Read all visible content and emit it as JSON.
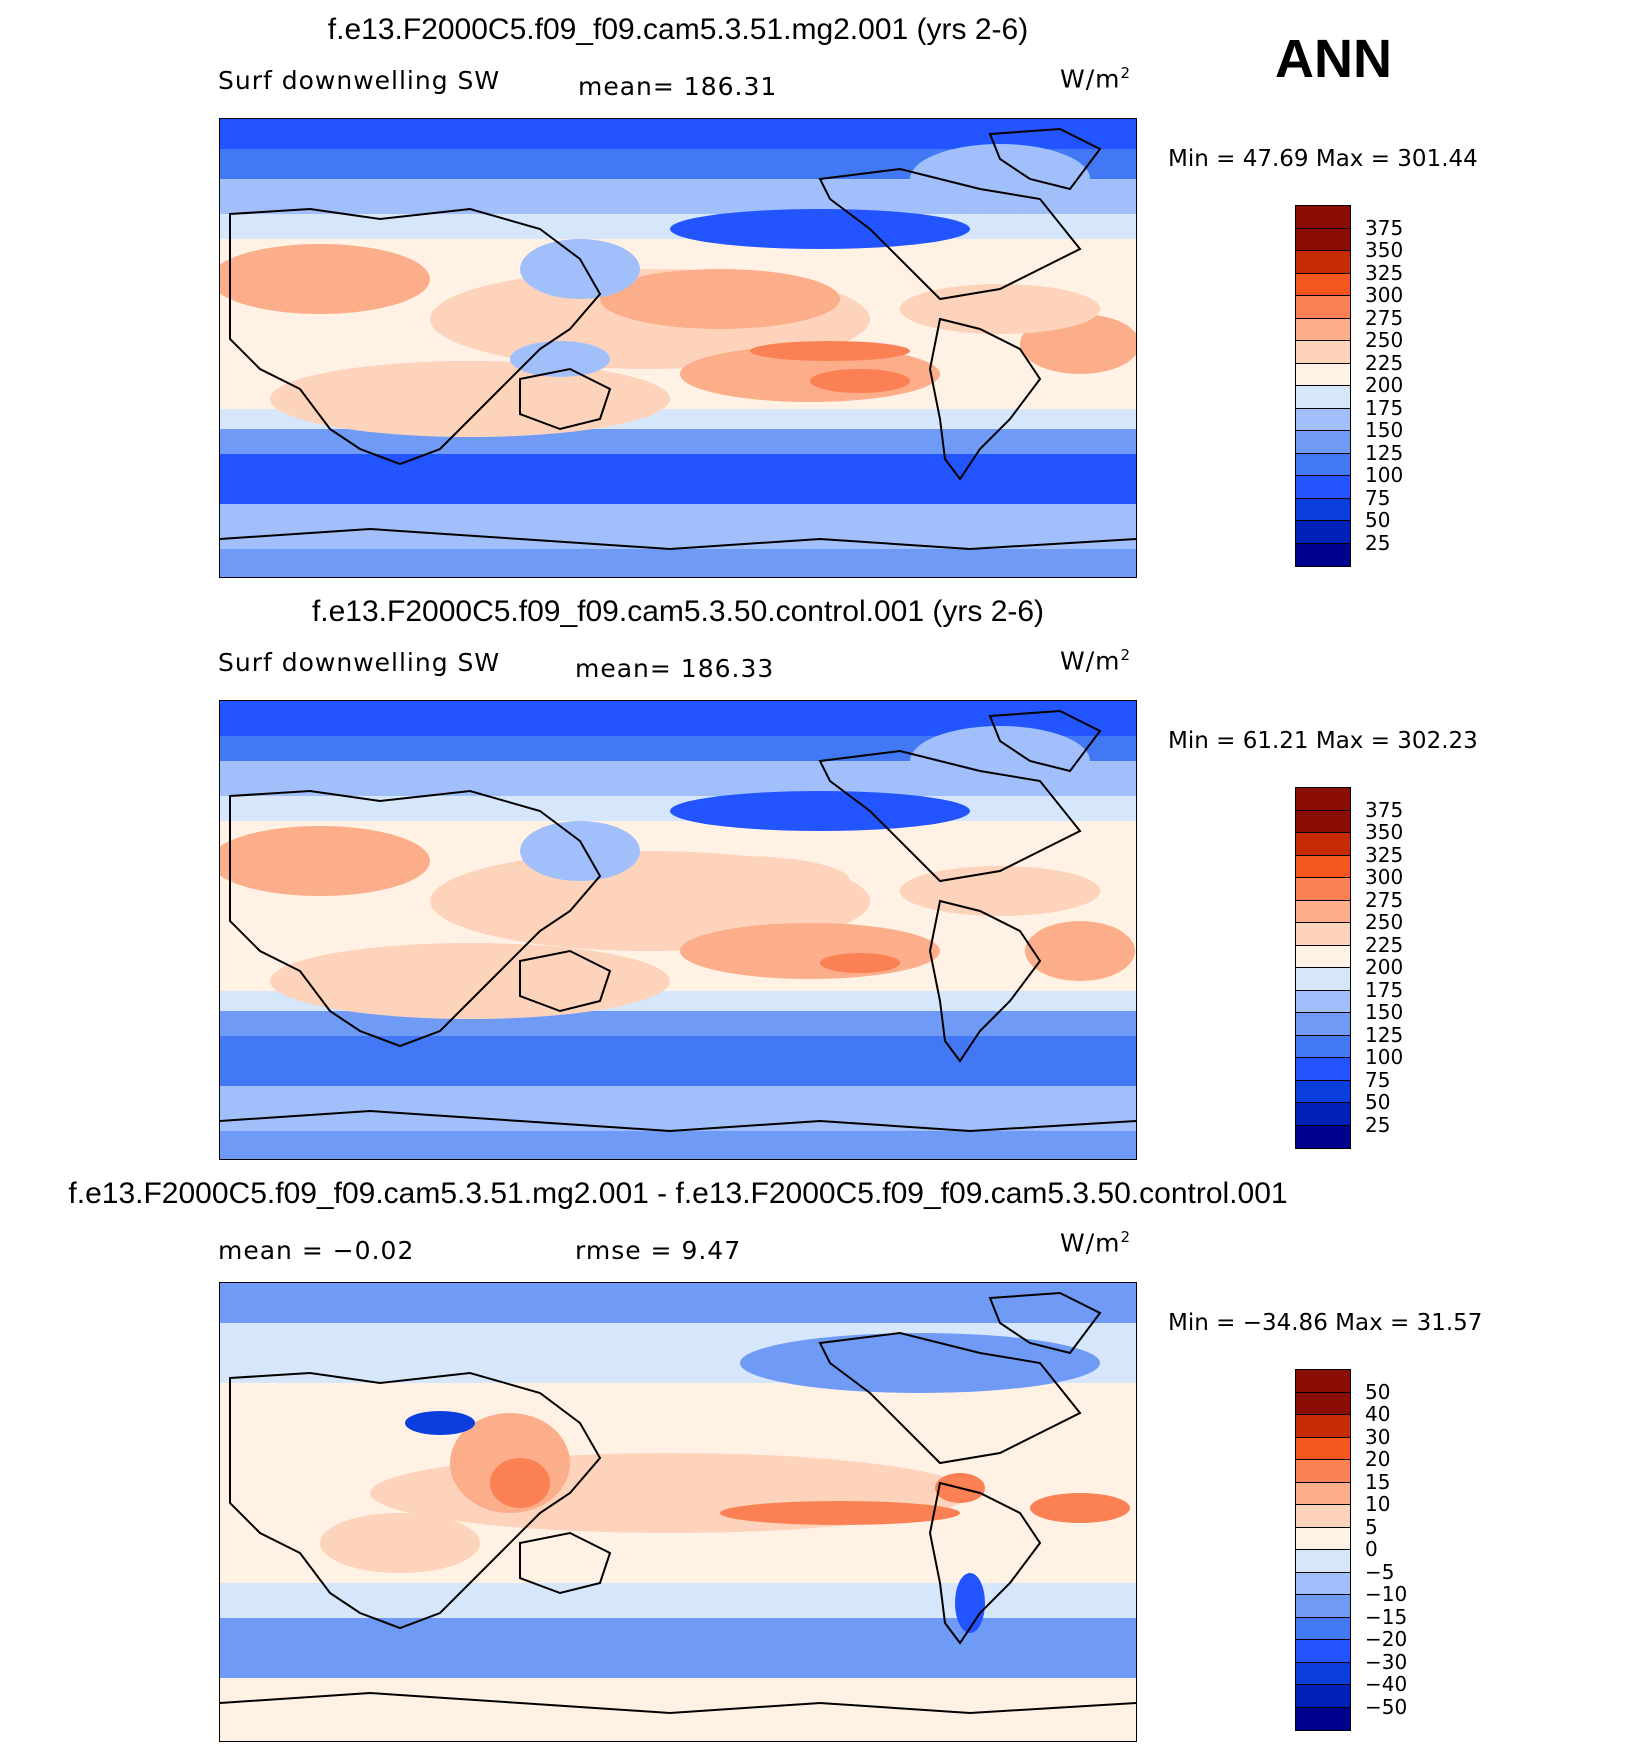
{
  "season": "ANN",
  "colors": {
    "abs_scale": [
      "#00008f",
      "#0021b8",
      "#0a3fdd",
      "#2255ff",
      "#4278f4",
      "#6f9bf7",
      "#a1bffa",
      "#d6e6fb",
      "#fff2e5",
      "#fdd3bb",
      "#fcae8a",
      "#fb8155",
      "#f3561f",
      "#c52c06",
      "#8b0e06"
    ],
    "diff_scale": [
      "#00008f",
      "#0021b8",
      "#0a3fdd",
      "#2255ff",
      "#4278f4",
      "#6f9bf7",
      "#a1bffa",
      "#d6e6fb",
      "#fff2e5",
      "#fdd3bb",
      "#fcae8a",
      "#fb8155",
      "#f3561f",
      "#c52c06",
      "#8b0e06"
    ]
  },
  "panels": [
    {
      "title": "f.e13.F2000C5.f09_f09.cam5.3.51.mg2.001 (yrs 2-6)",
      "left_label": "Surf downwelling SW",
      "center_label": "mean= 186.31",
      "units_base": "W/m",
      "units_exp": "2",
      "minmax": "Min =   47.69 Max = 301.44",
      "colorbar_ticks": [
        "375",
        "350",
        "325",
        "300",
        "275",
        "250",
        "225",
        "200",
        "175",
        "150",
        "125",
        "100",
        "75",
        "50",
        "25"
      ]
    },
    {
      "title": "f.e13.F2000C5.f09_f09.cam5.3.50.control.001 (yrs 2-6)",
      "left_label": "Surf downwelling SW",
      "center_label": "mean= 186.33",
      "units_base": "W/m",
      "units_exp": "2",
      "minmax": "Min =   61.21 Max = 302.23",
      "colorbar_ticks": [
        "375",
        "350",
        "325",
        "300",
        "275",
        "250",
        "225",
        "200",
        "175",
        "150",
        "125",
        "100",
        "75",
        "50",
        "25"
      ]
    },
    {
      "title": "f.e13.F2000C5.f09_f09.cam5.3.51.mg2.001 - f.e13.F2000C5.f09_f09.cam5.3.50.control.001",
      "left_label": "mean =   −0.02",
      "center_label": "rmse =    9.47",
      "units_base": "W/m",
      "units_exp": "2",
      "minmax": "Min = −34.86 Max =   31.57",
      "colorbar_ticks": [
        "50",
        "40",
        "30",
        "20",
        "15",
        "10",
        "5",
        "0",
        "−5",
        "−10",
        "−15",
        "−20",
        "−30",
        "−40",
        "−50"
      ]
    }
  ]
}
